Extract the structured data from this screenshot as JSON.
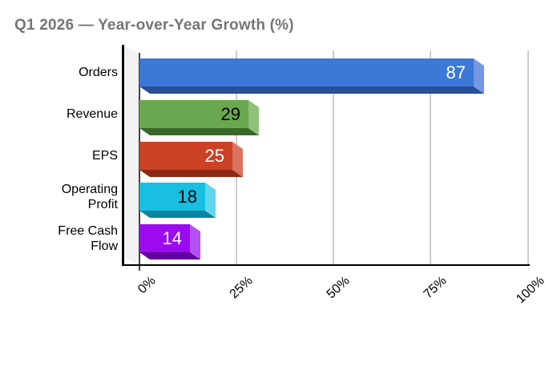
{
  "title": {
    "text": "Q1 2026 — Year-over-Year Growth (%)"
  },
  "colors": {
    "title": "#757575",
    "background": "#FFFFFF",
    "gridline": "#CCCCCC",
    "axis": "#000000",
    "zero_line": "#424242",
    "wall": "#F2F2F2"
  },
  "chart_data": {
    "type": "bar",
    "orientation": "horizontal",
    "style": "3d-bevel",
    "title": "Q1 2026 — Year-over-Year Growth (%)",
    "categories": [
      "Orders",
      "Revenue",
      "EPS",
      "Operating Profit",
      "Free Cash Flow"
    ],
    "category_display": [
      "Orders",
      "Revenue",
      "EPS",
      "Operating\nProfit",
      "Free Cash\nFlow"
    ],
    "values": [
      87,
      29,
      25,
      18,
      14
    ],
    "value_labels": [
      "87",
      "29",
      "25",
      "18",
      "14"
    ],
    "value_label_position": "inside-end",
    "xlabel": "",
    "ylabel": "",
    "x_tick_labels": [
      "0%",
      "25%",
      "50%",
      "75%",
      "100%"
    ],
    "x_tick_values": [
      0,
      25,
      50,
      75,
      100
    ],
    "xlim": [
      0,
      100
    ],
    "grid": true,
    "legend": false,
    "bar_styles": [
      {
        "face": "#3C78D8",
        "cap": "#7598E4",
        "under": "#2A5096",
        "value_text": "#FFFFFF"
      },
      {
        "face": "#6AA84F",
        "cap": "#90C178",
        "under": "#3A682A",
        "value_text": "#000000"
      },
      {
        "face": "#CC4125",
        "cap": "#DA7360",
        "under": "#8E2B12",
        "value_text": "#FFFFFF"
      },
      {
        "face": "#18BFE0",
        "cap": "#5FD6EE",
        "under": "#0C84A0",
        "value_text": "#000000"
      },
      {
        "face": "#9C0AF0",
        "cap": "#B54FF6",
        "under": "#64029C",
        "value_text": "#FFFFFF"
      }
    ]
  }
}
